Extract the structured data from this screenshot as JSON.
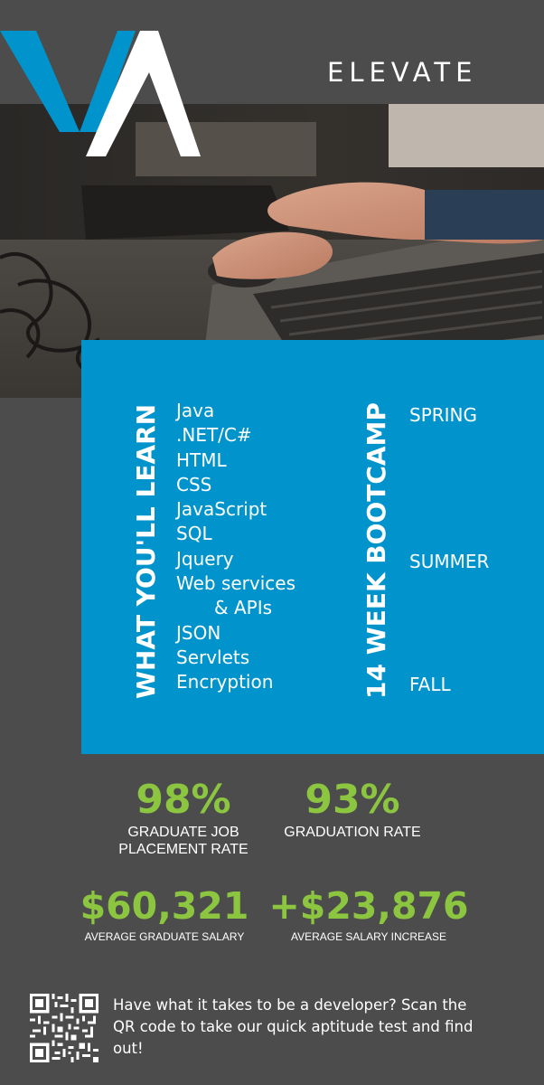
{
  "brand": {
    "name": "ELEVATE",
    "logo": "elevate-va-logo",
    "colors": {
      "blue": "#0194cc",
      "green": "#8cc540",
      "background": "#4c4c4c"
    }
  },
  "photo": {
    "subject": "hands-on-laptop-keyboard-and-mouse"
  },
  "learn": {
    "heading": "WHAT YOU'LL LEARN",
    "items": [
      "Java",
      ".NET/C#",
      "HTML",
      "CSS",
      "JavaScript",
      "SQL",
      "Jquery",
      "Web services",
      "& APIs",
      "JSON",
      "Servlets",
      "Encryption"
    ]
  },
  "bootcamp": {
    "heading": "14 WEEK BOOTCAMP",
    "seasons": [
      "SPRING",
      "SUMMER",
      "FALL"
    ]
  },
  "stats": [
    {
      "value": "98%",
      "label1": "GRADUATE JOB",
      "label2": "PLACEMENT RATE"
    },
    {
      "value": "93%",
      "label1": "GRADUATION RATE",
      "label2": ""
    },
    {
      "value": "$60,321",
      "label1": "AVERAGE GRADUATE SALARY",
      "label2": ""
    },
    {
      "value": "+$23,876",
      "label1": "AVERAGE SALARY INCREASE",
      "label2": ""
    }
  ],
  "cta": {
    "qr": "qr-code-icon",
    "text": "Have what it takes to be a developer? Scan the QR code to take our quick aptitude test and find out!"
  }
}
